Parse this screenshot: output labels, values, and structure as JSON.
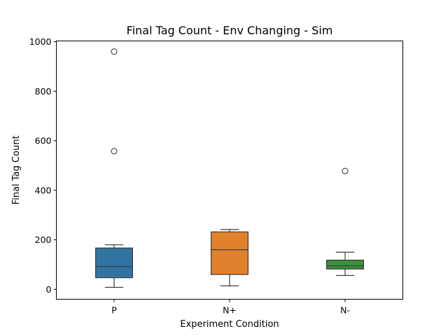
{
  "chart_data": {
    "type": "box",
    "title": "Final Tag Count - Env Changing - Sim",
    "xlabel": "Experiment Condition",
    "ylabel": "Final Tag Count",
    "categories": [
      "P",
      "N+",
      "N-"
    ],
    "ylim": [
      -40,
      1003
    ],
    "yticks": [
      0,
      200,
      400,
      600,
      800,
      1000
    ],
    "grid": false,
    "boxes": [
      {
        "category": "P",
        "color": "#3274a1",
        "whisker_low": 8,
        "q1": 47,
        "median": 92,
        "q3": 167,
        "whisker_high": 180,
        "outliers": [
          558,
          960
        ]
      },
      {
        "category": "N+",
        "color": "#e1812c",
        "whisker_low": 14,
        "q1": 60,
        "median": 160,
        "q3": 232,
        "whisker_high": 242,
        "outliers": []
      },
      {
        "category": "N-",
        "color": "#3a923a",
        "whisker_low": 56,
        "q1": 82,
        "median": 95,
        "q3": 118,
        "whisker_high": 150,
        "outliers": [
          478
        ]
      }
    ]
  }
}
